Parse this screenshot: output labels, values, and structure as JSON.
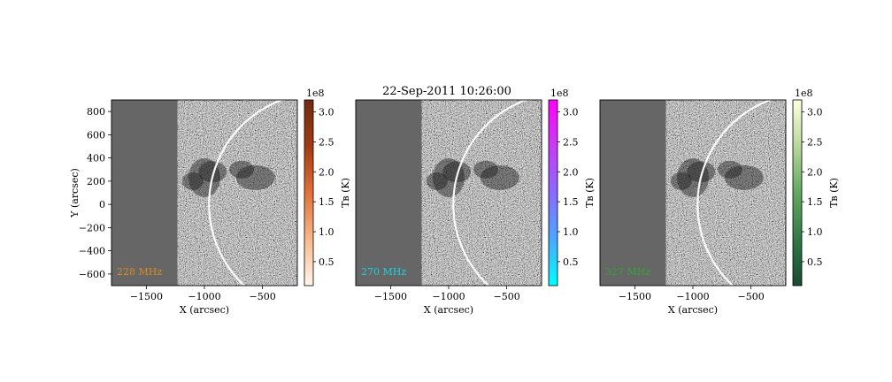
{
  "figure_title": "22-Sep-2011 10:26:00",
  "chart_data": [
    {
      "type": "heatmap",
      "frequency_label": "228 MHz",
      "label_color": "#e08a1e",
      "xlabel": "X (arcsec)",
      "ylabel": "Y (arcsec)",
      "xlim": [
        -1800,
        -200
      ],
      "ylim": [
        -700,
        900
      ],
      "xticks": [
        "-1500",
        "-1000",
        "-500"
      ],
      "yticks": [
        "-600",
        "-400",
        "-200",
        "0",
        "200",
        "400",
        "600",
        "800"
      ],
      "colorbar": {
        "label": "Tʙ (K)",
        "scale_note": "1e8",
        "range": [
          0.1,
          3.2
        ],
        "ticks": [
          "0.5",
          "1.0",
          "1.5",
          "2.0",
          "2.5",
          "3.0"
        ],
        "colors": [
          "#fff6ee",
          "#f7b98a",
          "#e2703a",
          "#a33b14",
          "#6e2b12"
        ]
      }
    },
    {
      "type": "heatmap",
      "frequency_label": "270 MHz",
      "label_color": "#19d4e0",
      "xlabel": "X (arcsec)",
      "ylabel": "",
      "xlim": [
        -1800,
        -200
      ],
      "ylim": [
        -700,
        900
      ],
      "xticks": [
        "-1500",
        "-1000",
        "-500"
      ],
      "yticks": [],
      "colorbar": {
        "label": "Tʙ (K)",
        "scale_note": "1e8",
        "range": [
          0.1,
          3.2
        ],
        "ticks": [
          "0.5",
          "1.0",
          "1.5",
          "2.0",
          "2.5",
          "3.0"
        ],
        "colors": [
          "#00ffff",
          "#4aa8ff",
          "#8a6aff",
          "#c93cf5",
          "#ff00ff"
        ]
      }
    },
    {
      "type": "heatmap",
      "frequency_label": "327 MHz",
      "label_color": "#34a534",
      "xlabel": "X (arcsec)",
      "ylabel": "",
      "xlim": [
        -1800,
        -200
      ],
      "ylim": [
        -700,
        900
      ],
      "xticks": [
        "-1500",
        "-1000",
        "-500"
      ],
      "yticks": [],
      "colorbar": {
        "label": "Tʙ (K)",
        "scale_note": "1e8",
        "range": [
          0.1,
          3.2
        ],
        "ticks": [
          "0.5",
          "1.0",
          "1.5",
          "2.0",
          "2.5",
          "3.0"
        ],
        "colors": [
          "#1b4a32",
          "#2f7a48",
          "#63a860",
          "#b7d89a",
          "#ffffe0"
        ]
      }
    }
  ]
}
